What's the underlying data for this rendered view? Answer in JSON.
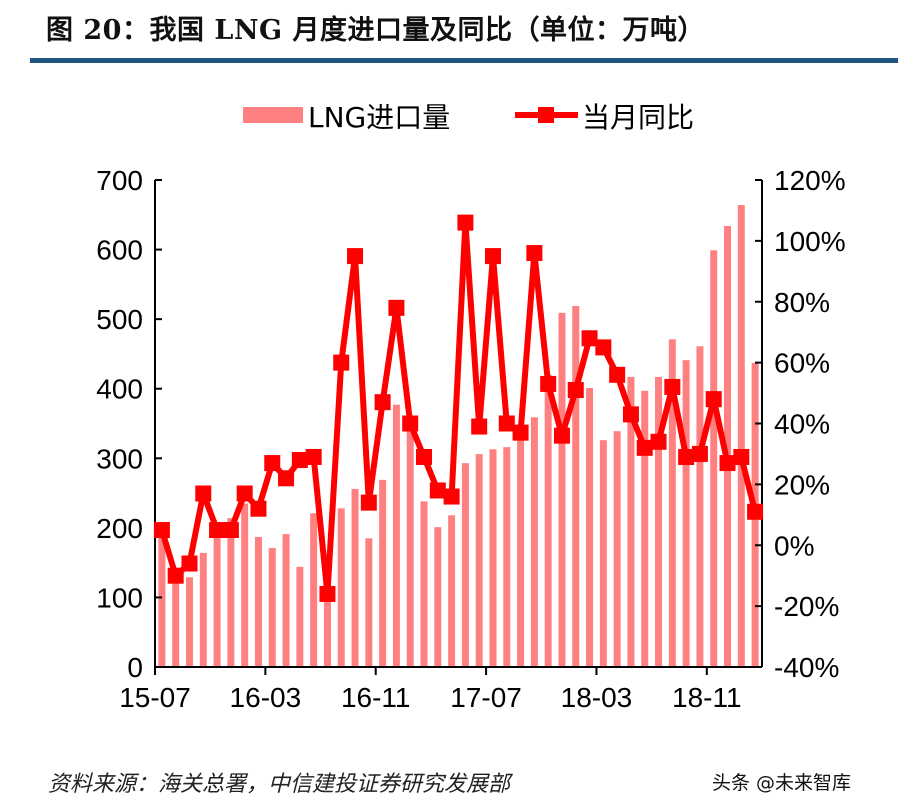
{
  "title": "图 20：我国 LNG 月度进口量及同比（单位：万吨）",
  "source": "资料来源：海关总署，中信建投证券研究发展部",
  "watermark": "头条 @未来智库",
  "chart_data": {
    "type": "bar+line",
    "legend_position": "top",
    "grid": false,
    "categories": [
      "15-07",
      "15-08",
      "15-09",
      "15-10",
      "15-11",
      "15-12",
      "16-01",
      "16-02",
      "16-03",
      "16-04",
      "16-05",
      "16-06",
      "16-07",
      "16-08",
      "16-09",
      "16-10",
      "16-11",
      "16-12",
      "17-01",
      "17-02",
      "17-03",
      "17-04",
      "17-05",
      "17-06",
      "17-07",
      "17-08",
      "17-09",
      "17-10",
      "17-11",
      "17-12",
      "18-01",
      "18-02",
      "18-03",
      "18-04",
      "18-05",
      "18-06",
      "18-07",
      "18-08",
      "18-09",
      "18-10",
      "18-11",
      "18-12",
      "19-01",
      "19-02"
    ],
    "x_tick_labels": [
      "15-07",
      "16-03",
      "16-11",
      "17-07",
      "18-03",
      "18-11"
    ],
    "y_left": {
      "range": [
        0,
        700
      ],
      "ticks": [
        "0",
        "100",
        "200",
        "300",
        "400",
        "500",
        "600",
        "700"
      ]
    },
    "y_right": {
      "range": [
        -40,
        120
      ],
      "ticks": [
        "-40%",
        "-20%",
        "0%",
        "20%",
        "40%",
        "60%",
        "80%",
        "100%",
        "120%"
      ]
    },
    "series": [
      {
        "name": "LNG进口量",
        "type": "bar",
        "axis": "left",
        "color": "#FF8080",
        "values": [
          190,
          135,
          129,
          164,
          200,
          214,
          235,
          187,
          171,
          191,
          144,
          221,
          110,
          228,
          256,
          185,
          269,
          377,
          345,
          238,
          201,
          218,
          293,
          306,
          313,
          316,
          336,
          359,
          420,
          509,
          519,
          401,
          326,
          339,
          417,
          397,
          417,
          471,
          441,
          461,
          599,
          634,
          664,
          437
        ]
      },
      {
        "name": "当月同比",
        "type": "line",
        "axis": "right",
        "unit": "%",
        "color": "#FF0000",
        "marker": "square",
        "values": [
          5,
          -10,
          -6,
          17,
          5,
          5,
          17,
          12,
          27,
          22,
          28,
          29,
          -16,
          60,
          95,
          14,
          47,
          78,
          40,
          29,
          18,
          16,
          106,
          39,
          95,
          40,
          37,
          96,
          53,
          36,
          51,
          68,
          65,
          56,
          43,
          32,
          34,
          52,
          29,
          30,
          48,
          27,
          29,
          11
        ]
      }
    ]
  }
}
